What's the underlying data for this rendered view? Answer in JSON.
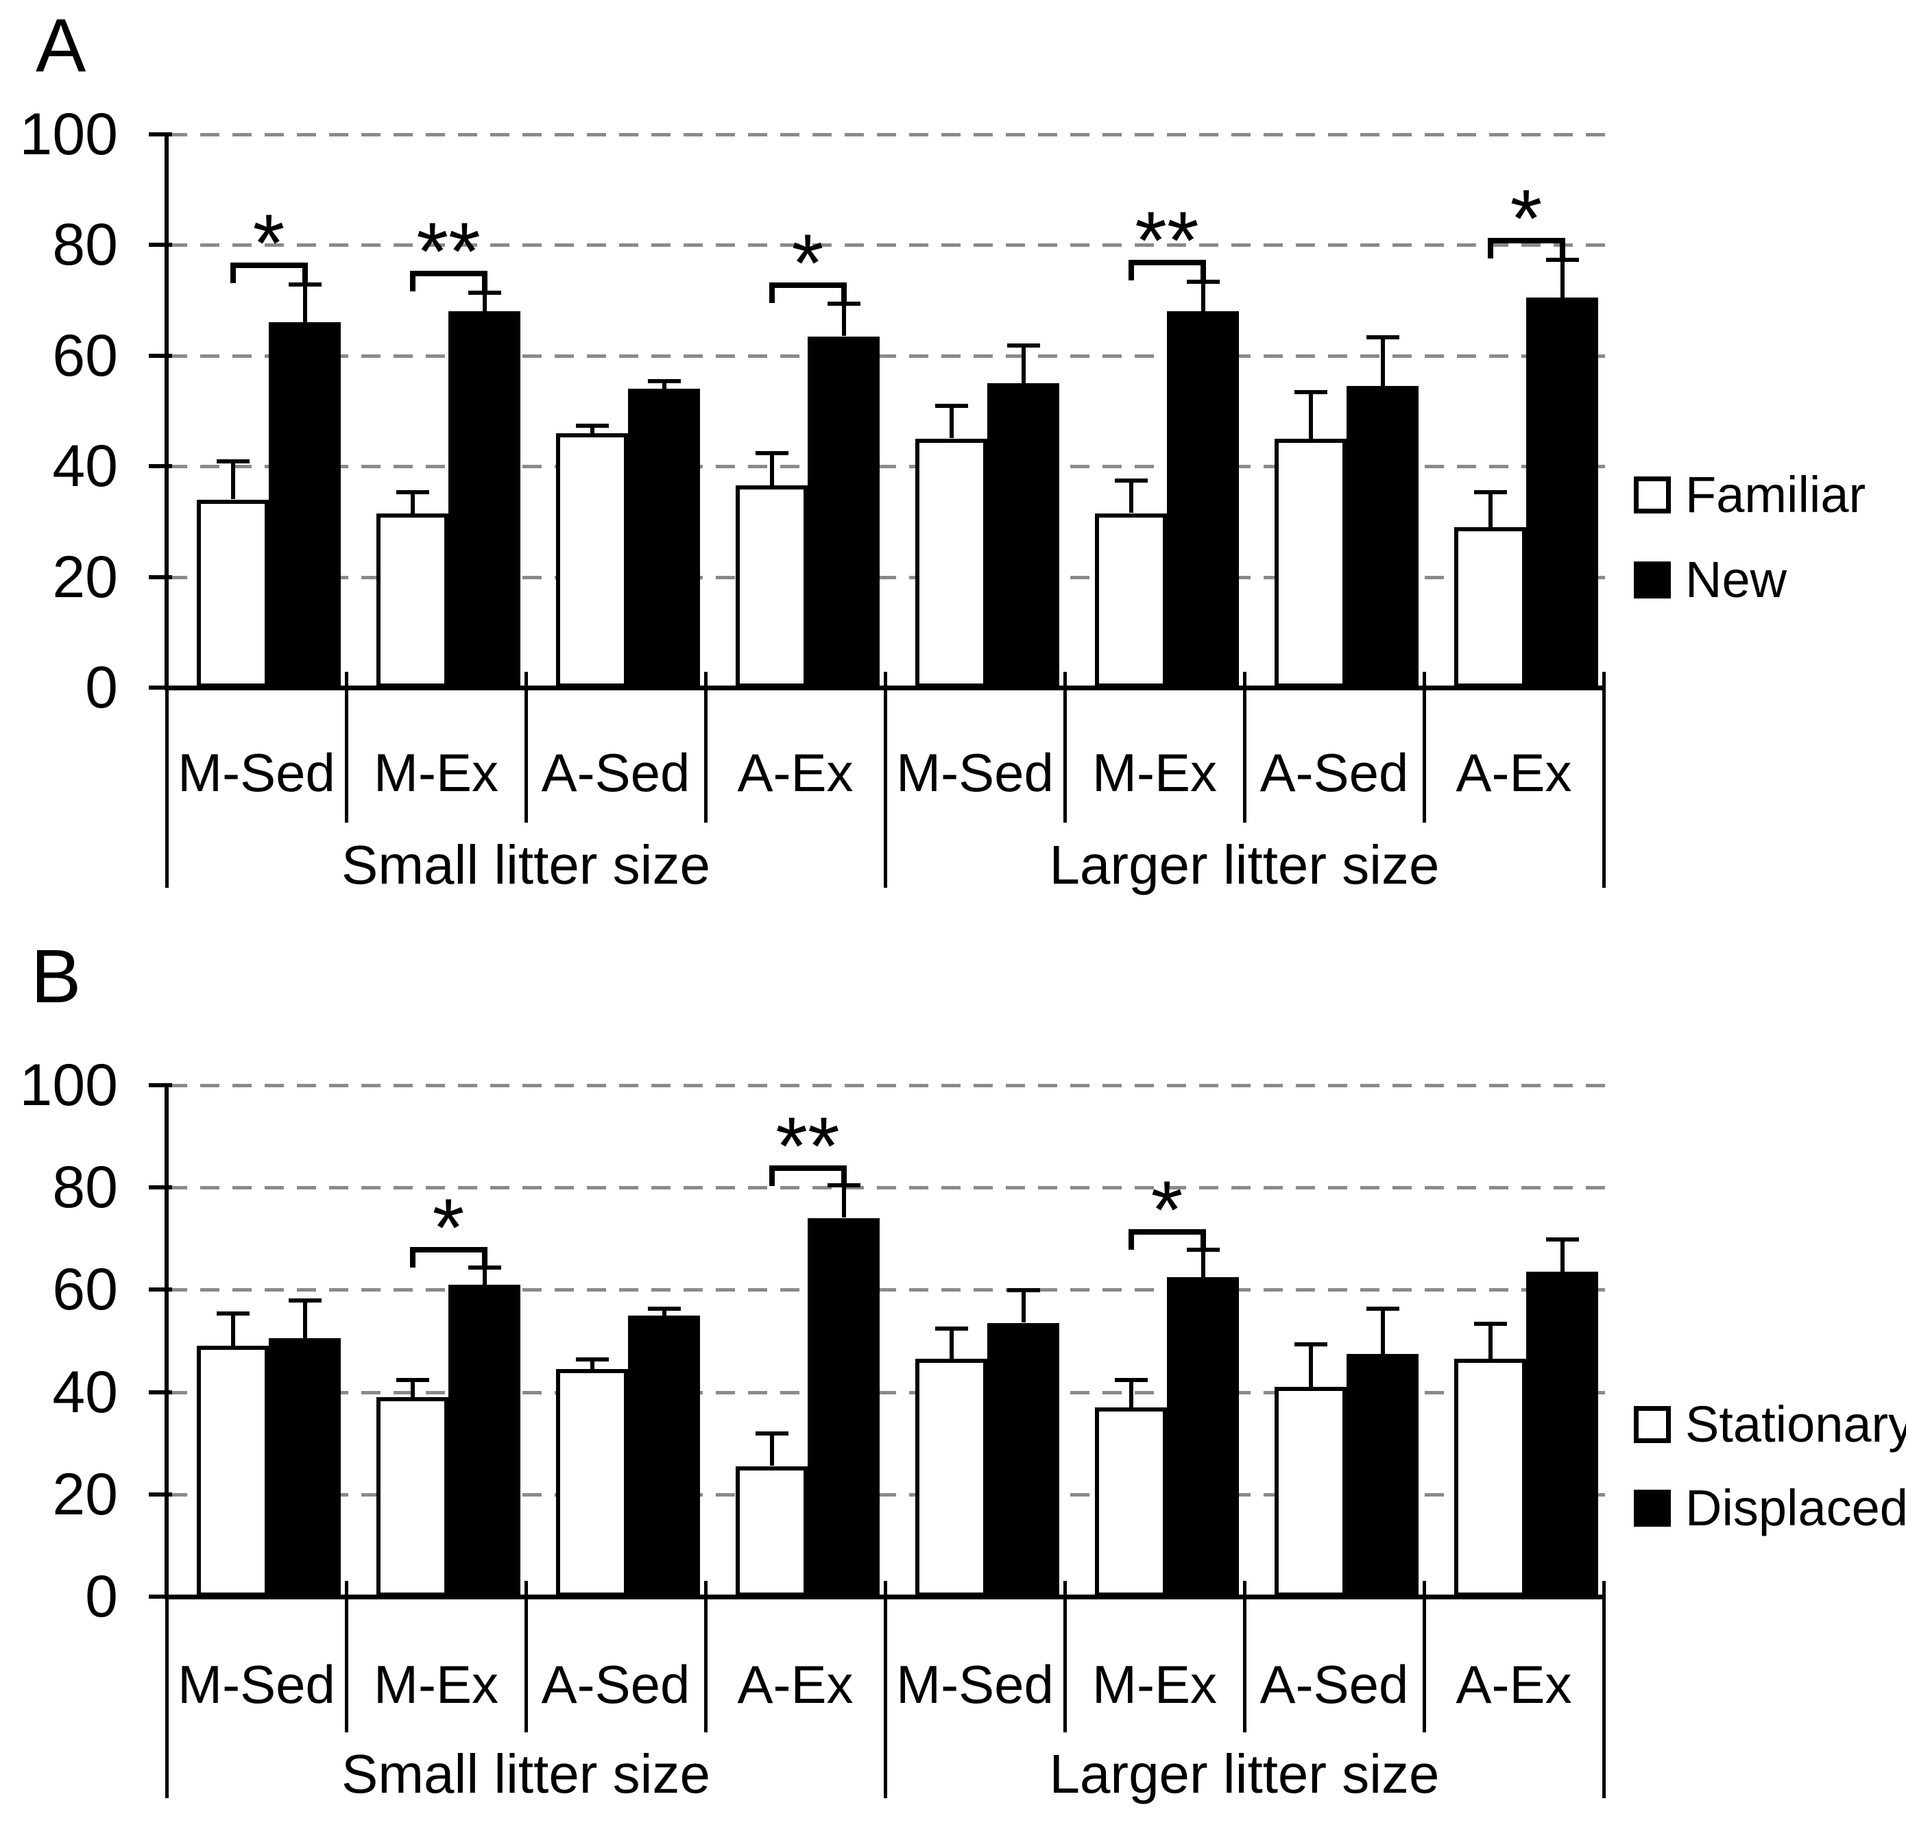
{
  "figure_type": "two-panel grouped bar chart with error bars",
  "colors": {
    "background": "#ffffff",
    "bar_white_fill": "#ffffff",
    "bar_black_fill": "#000000",
    "bar_outline": "#000000",
    "gridline": "#8a8a8a",
    "text": "#000000"
  },
  "chart_data": [
    {
      "type": "bar",
      "panel_label": "A",
      "ylim": [
        0,
        100
      ],
      "y_ticks": [
        100,
        80,
        60,
        40,
        20,
        0
      ],
      "grid": "horizontal dashed gridlines at every 20",
      "legend_position": "right of plot",
      "categories": [
        "M-Sed",
        "M-Ex",
        "A-Sed",
        "A-Ex",
        "M-Sed",
        "M-Ex",
        "A-Sed",
        "A-Ex"
      ],
      "category_groups": [
        {
          "label": "Small litter size",
          "first_index": 0,
          "last_index": 3
        },
        {
          "label": "Larger litter size",
          "first_index": 4,
          "last_index": 7
        }
      ],
      "series": [
        {
          "name": "Familiar",
          "fill": "#ffffff",
          "values": [
            34,
            31.5,
            46,
            36.5,
            45,
            31.5,
            45,
            29
          ],
          "errors_up": [
            7,
            4,
            1.5,
            6,
            6,
            6,
            8.5,
            6.5
          ]
        },
        {
          "name": "New",
          "fill": "#000000",
          "values": [
            66,
            68,
            54,
            63.5,
            55,
            68,
            54.5,
            70.5
          ],
          "errors_up": [
            7,
            3.5,
            1.5,
            6,
            7,
            5.5,
            9,
            7
          ]
        }
      ],
      "significance": [
        "*",
        "**",
        "",
        "*",
        "",
        "**",
        "",
        "*"
      ]
    },
    {
      "type": "bar",
      "panel_label": "B",
      "ylim": [
        0,
        100
      ],
      "y_ticks": [
        100,
        80,
        60,
        40,
        20,
        0
      ],
      "grid": "horizontal dashed gridlines at every 20",
      "legend_position": "right of plot",
      "categories": [
        "M-Sed",
        "M-Ex",
        "A-Sed",
        "A-Ex",
        "M-Sed",
        "M-Ex",
        "A-Sed",
        "A-Ex"
      ],
      "category_groups": [
        {
          "label": "Small litter size",
          "first_index": 0,
          "last_index": 3
        },
        {
          "label": "Larger litter size",
          "first_index": 4,
          "last_index": 7
        }
      ],
      "series": [
        {
          "name": "Stationary",
          "fill": "#ffffff",
          "values": [
            49,
            39,
            44.5,
            25.5,
            46.5,
            37,
            41,
            46.5
          ],
          "errors_up": [
            6.5,
            3.5,
            2,
            6.5,
            6,
            5.5,
            8.5,
            7
          ]
        },
        {
          "name": "Displaced",
          "fill": "#000000",
          "values": [
            50.5,
            61,
            55,
            74,
            53.5,
            62.5,
            47.5,
            63.5
          ],
          "errors_up": [
            7.5,
            3.5,
            1.5,
            6.5,
            6.5,
            5.5,
            9,
            6.5
          ]
        }
      ],
      "significance": [
        "",
        "*",
        "",
        "**",
        "",
        "*",
        "",
        ""
      ]
    }
  ]
}
